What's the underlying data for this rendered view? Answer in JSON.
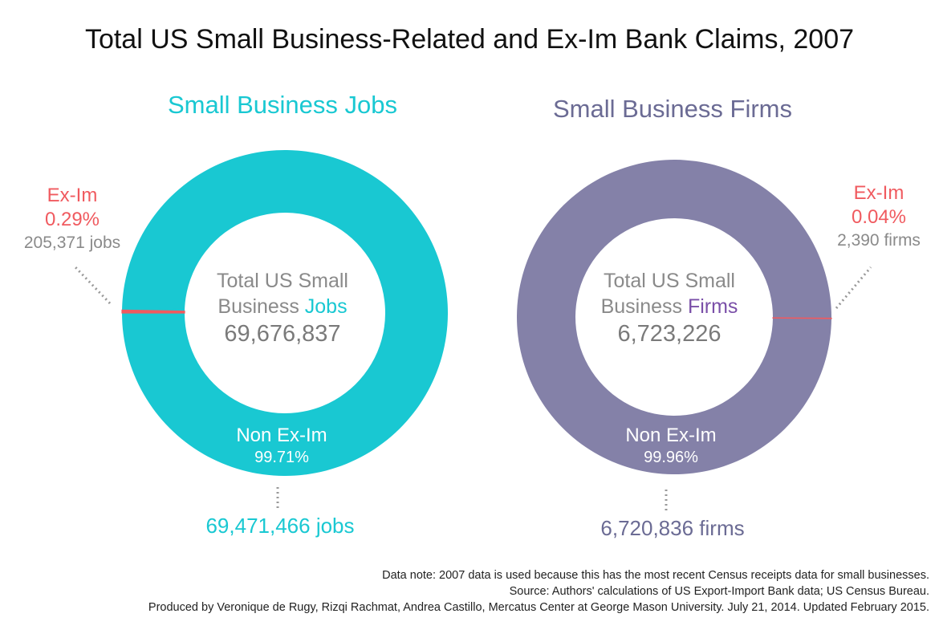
{
  "title": "Total US Small Business-Related and Ex-Im Bank Claims, 2007",
  "colors": {
    "jobs": "#19c8d2",
    "firms": "#8481a8",
    "exim": "#f05a5f",
    "firms_title": "#6b6b94",
    "firms_highlight": "#7a4fa8"
  },
  "chart_data": [
    {
      "type": "pie",
      "title": "Small Business Jobs",
      "center_text": {
        "line1": "Total US Small",
        "line2_prefix": "Business ",
        "line2_highlight": "Jobs",
        "total": "69,676,837"
      },
      "slices": [
        {
          "name": "Ex-Im",
          "percent": 0.29,
          "percent_label": "0.29%",
          "count_label": "205,371 jobs"
        },
        {
          "name": "Non Ex-Im",
          "percent": 99.71,
          "percent_label": "99.71%",
          "count_label": "69,471,466 jobs"
        }
      ]
    },
    {
      "type": "pie",
      "title": "Small Business Firms",
      "center_text": {
        "line1": "Total US Small",
        "line2_prefix": "Business ",
        "line2_highlight": "Firms",
        "total": "6,723,226"
      },
      "slices": [
        {
          "name": "Ex-Im",
          "percent": 0.04,
          "percent_label": "0.04%",
          "count_label": "2,390 firms"
        },
        {
          "name": "Non Ex-Im",
          "percent": 99.96,
          "percent_label": "99.96%",
          "count_label": "6,720,836 firms"
        }
      ]
    }
  ],
  "notes": [
    "Data note: 2007 data is used because this has the most recent Census receipts data for small businesses.",
    "Source: Authors' calculations of US Export-Import Bank data; US Census Bureau.",
    "Produced by Veronique de Rugy, Rizqi Rachmat, Andrea Castillo, Mercatus Center at George Mason University. July 21, 2014. Updated February 2015."
  ]
}
